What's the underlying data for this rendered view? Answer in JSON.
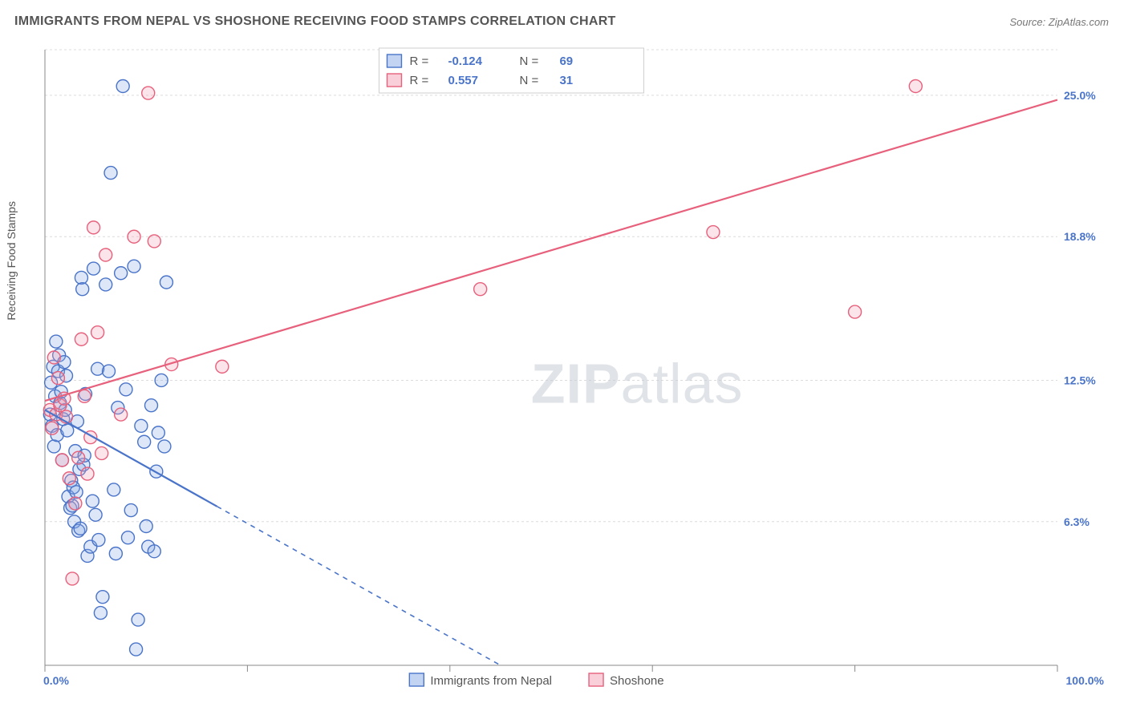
{
  "title": "IMMIGRANTS FROM NEPAL VS SHOSHONE RECEIVING FOOD STAMPS CORRELATION CHART",
  "source_label": "Source: ZipAtlas.com",
  "y_axis_title": "Receiving Food Stamps",
  "watermark_a": "ZIP",
  "watermark_b": "atlas",
  "chart": {
    "type": "scatter",
    "background_color": "#ffffff",
    "grid_color": "#dcdcdc",
    "axis_color": "#888888",
    "value_color": "#4a74c9",
    "xlim": [
      0,
      100
    ],
    "ylim": [
      0,
      27
    ],
    "y_gridlines": [
      6.3,
      12.5,
      18.8,
      25.0,
      27.0
    ],
    "y_ticks": [
      {
        "v": 6.3,
        "label": "6.3%"
      },
      {
        "v": 12.5,
        "label": "12.5%"
      },
      {
        "v": 18.8,
        "label": "18.8%"
      },
      {
        "v": 25.0,
        "label": "25.0%"
      }
    ],
    "x_min_label": "0.0%",
    "x_max_label": "100.0%",
    "x_tick_positions": [
      0,
      20,
      40,
      60,
      80,
      100
    ],
    "marker_radius": 8,
    "marker_stroke_width": 1.4,
    "marker_fill_opacity": 0.28,
    "series": [
      {
        "key": "nepal",
        "name": "Immigrants from Nepal",
        "stroke": "#4a74c9",
        "fill": "#86a9e3",
        "R": "-0.124",
        "N": "69",
        "trend": {
          "x1": 0,
          "y1": 11.2,
          "x2": 45,
          "y2": 0.0,
          "solid_until_x": 17
        },
        "points": [
          [
            0.5,
            11.0
          ],
          [
            0.6,
            12.4
          ],
          [
            0.7,
            10.5
          ],
          [
            0.8,
            13.1
          ],
          [
            0.9,
            9.6
          ],
          [
            1.0,
            11.8
          ],
          [
            1.1,
            14.2
          ],
          [
            1.2,
            10.1
          ],
          [
            1.3,
            12.9
          ],
          [
            1.4,
            13.6
          ],
          [
            1.5,
            11.5
          ],
          [
            1.6,
            12.0
          ],
          [
            1.7,
            9.0
          ],
          [
            1.8,
            10.8
          ],
          [
            1.9,
            13.3
          ],
          [
            2.0,
            11.2
          ],
          [
            2.1,
            12.7
          ],
          [
            2.2,
            10.3
          ],
          [
            2.3,
            7.4
          ],
          [
            2.5,
            6.9
          ],
          [
            2.6,
            8.1
          ],
          [
            2.7,
            7.0
          ],
          [
            2.8,
            7.8
          ],
          [
            2.9,
            6.3
          ],
          [
            3.0,
            9.4
          ],
          [
            3.1,
            7.6
          ],
          [
            3.2,
            10.7
          ],
          [
            3.3,
            5.9
          ],
          [
            3.4,
            8.6
          ],
          [
            3.5,
            6.0
          ],
          [
            3.6,
            17.0
          ],
          [
            3.7,
            16.5
          ],
          [
            3.8,
            8.8
          ],
          [
            3.9,
            9.2
          ],
          [
            4.0,
            11.9
          ],
          [
            4.2,
            4.8
          ],
          [
            4.5,
            5.2
          ],
          [
            4.7,
            7.2
          ],
          [
            4.8,
            17.4
          ],
          [
            5.0,
            6.6
          ],
          [
            5.2,
            13.0
          ],
          [
            5.3,
            5.5
          ],
          [
            5.5,
            2.3
          ],
          [
            5.7,
            3.0
          ],
          [
            6.0,
            16.7
          ],
          [
            6.3,
            12.9
          ],
          [
            6.5,
            21.6
          ],
          [
            6.8,
            7.7
          ],
          [
            7.0,
            4.9
          ],
          [
            7.2,
            11.3
          ],
          [
            7.5,
            17.2
          ],
          [
            7.7,
            25.4
          ],
          [
            8.0,
            12.1
          ],
          [
            8.2,
            5.6
          ],
          [
            8.5,
            6.8
          ],
          [
            8.8,
            17.5
          ],
          [
            9.0,
            0.7
          ],
          [
            9.2,
            2.0
          ],
          [
            9.5,
            10.5
          ],
          [
            9.8,
            9.8
          ],
          [
            10.0,
            6.1
          ],
          [
            10.2,
            5.2
          ],
          [
            10.5,
            11.4
          ],
          [
            10.8,
            5.0
          ],
          [
            11.0,
            8.5
          ],
          [
            11.2,
            10.2
          ],
          [
            11.5,
            12.5
          ],
          [
            11.8,
            9.6
          ],
          [
            12.0,
            16.8
          ]
        ]
      },
      {
        "key": "shoshone",
        "name": "Shoshone",
        "stroke": "#e7607c",
        "fill": "#f3a2b3",
        "R": "0.557",
        "N": "31",
        "trend": {
          "x1": 0,
          "y1": 11.6,
          "x2": 100,
          "y2": 24.8,
          "solid_until_x": 100
        },
        "points": [
          [
            0.5,
            11.2
          ],
          [
            0.7,
            10.4
          ],
          [
            0.9,
            13.5
          ],
          [
            1.1,
            11.0
          ],
          [
            1.3,
            12.6
          ],
          [
            1.5,
            11.4
          ],
          [
            1.7,
            9.0
          ],
          [
            1.9,
            11.7
          ],
          [
            2.1,
            10.9
          ],
          [
            2.4,
            8.2
          ],
          [
            2.7,
            3.8
          ],
          [
            3.0,
            7.1
          ],
          [
            3.3,
            9.1
          ],
          [
            3.6,
            14.3
          ],
          [
            3.9,
            11.8
          ],
          [
            4.2,
            8.4
          ],
          [
            4.5,
            10.0
          ],
          [
            4.8,
            19.2
          ],
          [
            5.2,
            14.6
          ],
          [
            5.6,
            9.3
          ],
          [
            6.0,
            18.0
          ],
          [
            7.5,
            11.0
          ],
          [
            8.8,
            18.8
          ],
          [
            10.2,
            25.1
          ],
          [
            10.8,
            18.6
          ],
          [
            12.5,
            13.2
          ],
          [
            17.5,
            13.1
          ],
          [
            43.0,
            16.5
          ],
          [
            66.0,
            19.0
          ],
          [
            80.0,
            15.5
          ],
          [
            86.0,
            25.4
          ]
        ]
      }
    ],
    "legend_top": {
      "R_label": "R  =",
      "N_label": "N  ="
    },
    "legend_bottom": true
  }
}
